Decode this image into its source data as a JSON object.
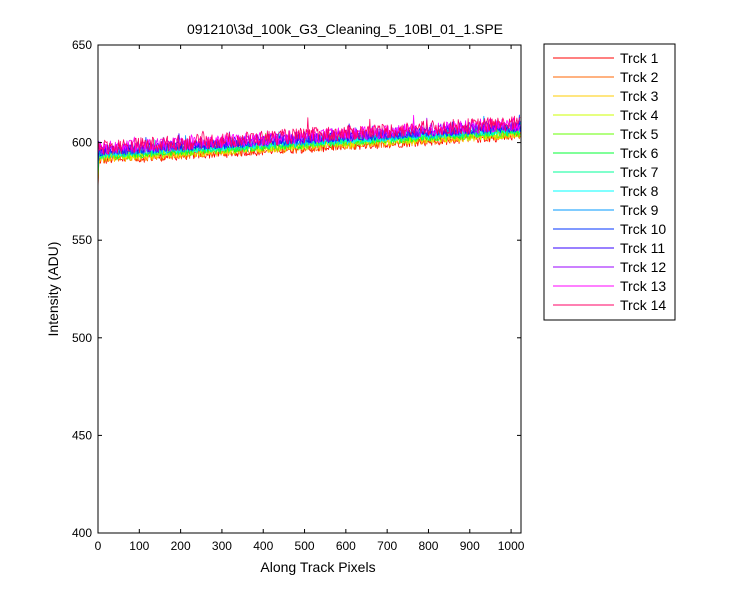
{
  "chart_data": {
    "type": "line",
    "title": "091210\\3d_100k_G3_Cleaning_5_10Bl_01_1.SPE",
    "xlabel": "Along Track Pixels",
    "ylabel": "Intensity (ADU)",
    "xlim": [
      0,
      1024
    ],
    "ylim": [
      400,
      650
    ],
    "xticks": [
      0,
      100,
      200,
      300,
      400,
      500,
      600,
      700,
      800,
      900,
      1000
    ],
    "yticks": [
      400,
      450,
      500,
      550,
      600,
      650
    ],
    "grid": false,
    "legend_position": "outside-right-top",
    "series": [
      {
        "name": "Trck 1",
        "color": "#ff0000",
        "start": 591.0,
        "end": 603.5,
        "noise": 2.5
      },
      {
        "name": "Trck 2",
        "color": "#ff6600",
        "start": 591.5,
        "end": 604.0,
        "noise": 2.5
      },
      {
        "name": "Trck 3",
        "color": "#ffcc00",
        "start": 592.0,
        "end": 604.5,
        "noise": 2.5
      },
      {
        "name": "Trck 4",
        "color": "#ccff00",
        "start": 592.5,
        "end": 605.0,
        "noise": 2.5
      },
      {
        "name": "Trck 5",
        "color": "#66ff00",
        "start": 593.0,
        "end": 605.5,
        "noise": 2.5
      },
      {
        "name": "Trck 6",
        "color": "#00ff33",
        "start": 593.5,
        "end": 606.0,
        "noise": 2.5
      },
      {
        "name": "Trck 7",
        "color": "#00ff99",
        "start": 594.0,
        "end": 606.5,
        "noise": 2.5
      },
      {
        "name": "Trck 8",
        "color": "#00ffff",
        "start": 594.5,
        "end": 607.0,
        "noise": 2.5
      },
      {
        "name": "Trck 9",
        "color": "#0099ff",
        "start": 595.0,
        "end": 607.5,
        "noise": 2.5
      },
      {
        "name": "Trck 10",
        "color": "#0033ff",
        "start": 595.5,
        "end": 608.0,
        "noise": 2.5
      },
      {
        "name": "Trck 11",
        "color": "#3300ff",
        "start": 596.0,
        "end": 608.5,
        "noise": 2.5
      },
      {
        "name": "Trck 12",
        "color": "#9900ff",
        "start": 596.5,
        "end": 609.0,
        "noise": 3.0
      },
      {
        "name": "Trck 13",
        "color": "#ff00ff",
        "start": 597.0,
        "end": 609.5,
        "noise": 3.5
      },
      {
        "name": "Trck 14",
        "color": "#ff0066",
        "start": 597.5,
        "end": 610.0,
        "noise": 4.0
      }
    ]
  }
}
